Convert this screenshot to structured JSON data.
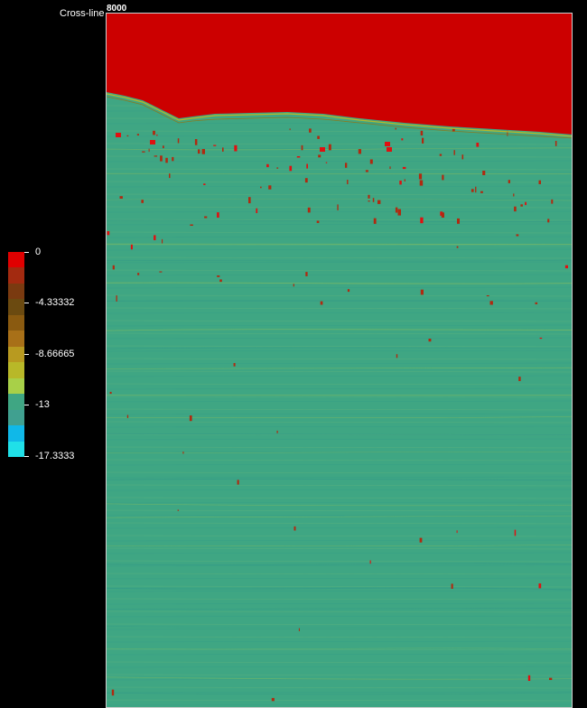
{
  "axis": {
    "title": "Cross-line",
    "first_tick": "8000"
  },
  "colors": {
    "background": "#000000",
    "frame": "#cfcfcf",
    "horizon_fill": "#cc0000",
    "seismic_base": "#3fa683",
    "seismic_light": "#a3c84a",
    "spots": "#b02a10"
  },
  "colorbar": {
    "swatches": [
      "#e00000",
      "#a32a10",
      "#7a3a10",
      "#6b4a10",
      "#8a5a10",
      "#a87018",
      "#b89a20",
      "#b8b828",
      "#a8d048",
      "#3fa683",
      "#40a090",
      "#10b8e8",
      "#20e0e8"
    ],
    "labels": [
      "0",
      "-4.33332",
      "-8.66665",
      "-13",
      "-17.3333"
    ]
  }
}
